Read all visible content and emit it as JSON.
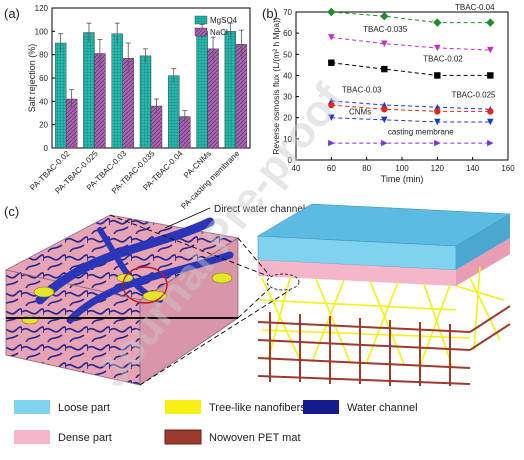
{
  "watermark": "Journal Pre-proof",
  "panels": {
    "a": {
      "label": "(a)"
    },
    "b": {
      "label": "(b)"
    },
    "c": {
      "label": "(c)"
    }
  },
  "chart_data": [
    {
      "type": "bar",
      "panel": "a",
      "ylabel": "Salt rejection (%)",
      "xlabel": "",
      "ylim": [
        0,
        120
      ],
      "yticks": [
        0,
        20,
        40,
        60,
        80,
        100,
        120
      ],
      "grid": false,
      "legend_position": "top-right",
      "categories": [
        "PA-TBAC-0.02",
        "PA-TBAC-0.025",
        "PA-TBAC-0.03",
        "PA-TBAC-0.035",
        "PA-TBAC-0.04",
        "PA-CNMs",
        "PA-casting membrane"
      ],
      "series": [
        {
          "name": "MgSO4",
          "color": "#27b8ad",
          "values": [
            90,
            99,
            98,
            79,
            62,
            100,
            100
          ],
          "errors": [
            8,
            8,
            9,
            6,
            6,
            6,
            7
          ]
        },
        {
          "name": "NaCl",
          "color": "#a563ae",
          "values": [
            42,
            81,
            77,
            36,
            27,
            85,
            89
          ],
          "errors": [
            8,
            12,
            13,
            6,
            5,
            10,
            12
          ]
        }
      ]
    },
    {
      "type": "scatter",
      "panel": "b",
      "xlabel": "Time (min)",
      "ylabel": "Reverse osmosis flux (L/(m² h Mpa))",
      "xlim": [
        40,
        160
      ],
      "ylim": [
        0,
        70
      ],
      "xticks": [
        40,
        60,
        80,
        100,
        120,
        140,
        160
      ],
      "yticks": [
        0,
        10,
        20,
        30,
        40,
        50,
        60,
        70
      ],
      "series": [
        {
          "name": "TBAC-0.04",
          "color": "#1f8b2a",
          "marker": "diamond",
          "x": [
            60,
            90,
            120,
            150
          ],
          "y": [
            70,
            68,
            65,
            65
          ]
        },
        {
          "name": "TBAC-0.035",
          "color": "#c42ec4",
          "marker": "triangle-down",
          "x": [
            60,
            90,
            120,
            150
          ],
          "y": [
            58,
            55,
            53,
            52
          ]
        },
        {
          "name": "TBAC-0.02",
          "color": "#000000",
          "marker": "square",
          "x": [
            60,
            90,
            120,
            150
          ],
          "y": [
            46,
            43,
            40,
            40
          ]
        },
        {
          "name": "TBAC-0.03",
          "color": "#1d33d1",
          "marker": "triangle-up",
          "x": [
            60,
            90,
            120,
            150
          ],
          "y": [
            28,
            26,
            25,
            24
          ]
        },
        {
          "name": "TBAC-0.025",
          "color": "#e0261d",
          "marker": "circle",
          "x": [
            60,
            90,
            120,
            150
          ],
          "y": [
            26,
            24,
            23,
            23
          ]
        },
        {
          "name": "CNMs",
          "color": "#1d33d1",
          "marker": "triangle-down",
          "x": [
            60,
            90,
            120,
            150
          ],
          "y": [
            20,
            19,
            18,
            18
          ]
        },
        {
          "name": "casting membrane",
          "color": "#7b2fe0",
          "marker": "triangle-right",
          "x": [
            60,
            90,
            120,
            150
          ],
          "y": [
            8,
            8,
            8,
            8
          ]
        }
      ]
    }
  ],
  "schematic": {
    "callout": "Direct water channels",
    "legend": [
      {
        "label": "Loose part",
        "color": "#7fd3ef"
      },
      {
        "label": "Tree-like nanofibers",
        "color": "#f4f013"
      },
      {
        "label": "Water channel",
        "color": "#151a8c"
      },
      {
        "label": "Dense part",
        "color": "#f6b6c9"
      },
      {
        "label": "Nowoven PET mat",
        "color": "#9c3a2d"
      }
    ]
  }
}
